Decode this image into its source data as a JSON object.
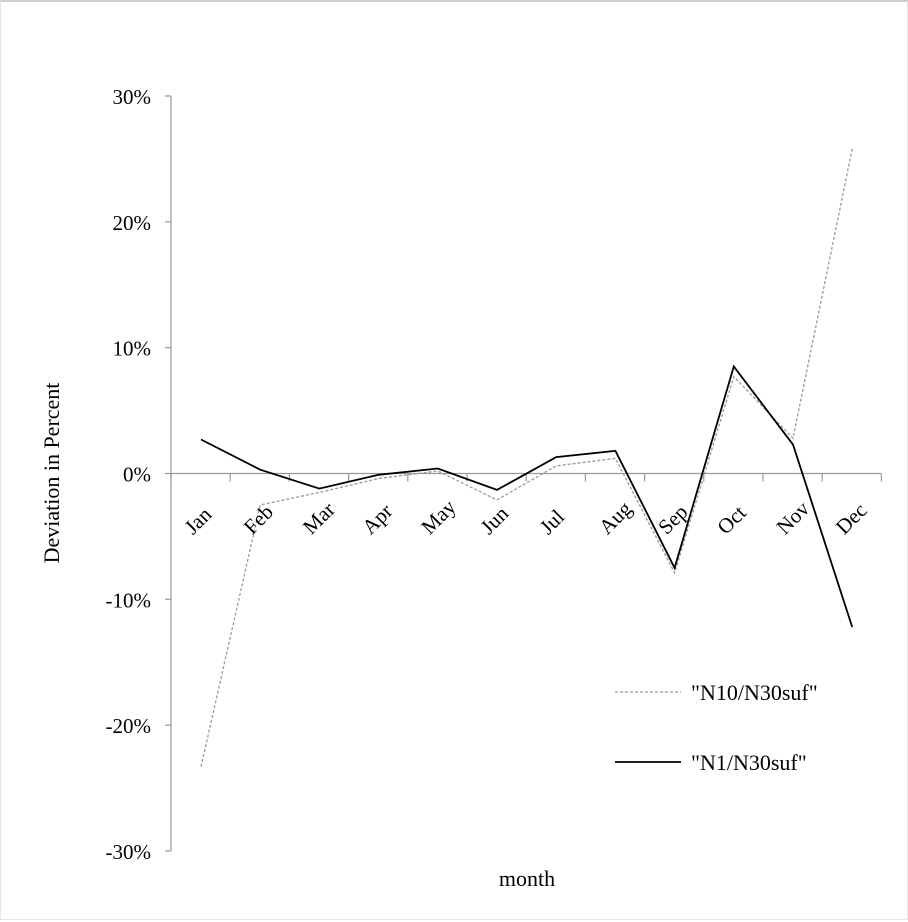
{
  "chart_data": {
    "type": "line",
    "title": "",
    "xlabel": "month",
    "ylabel": "Deviation in Percent",
    "categories": [
      "Jan",
      "Feb",
      "Mar",
      "Apr",
      "May",
      "Jun",
      "Jul",
      "Aug",
      "Sep",
      "Oct",
      "Nov",
      "Dec"
    ],
    "ylim": [
      -30,
      30
    ],
    "yticks": [
      30,
      20,
      10,
      0,
      -10,
      -20,
      -30
    ],
    "ytick_labels": [
      "30%",
      "20%",
      "10%",
      "0%",
      "-10%",
      "-20%",
      "-30%"
    ],
    "grid": false,
    "legend_position": "bottom-right",
    "series": [
      {
        "name": "\"N10/N30suf\"",
        "color": "#9a9a9a",
        "dash": "dashed",
        "values": [
          -23.3,
          -2.5,
          -1.5,
          -0.4,
          0.2,
          -2.1,
          0.6,
          1.2,
          -7.9,
          7.7,
          2.8,
          25.8
        ]
      },
      {
        "name": "\"N1/N30suf\"",
        "color": "#000000",
        "dash": "solid",
        "values": [
          2.7,
          0.3,
          -1.2,
          -0.1,
          0.4,
          -1.3,
          1.3,
          1.8,
          -7.5,
          8.5,
          2.3,
          -12.2
        ]
      }
    ]
  }
}
